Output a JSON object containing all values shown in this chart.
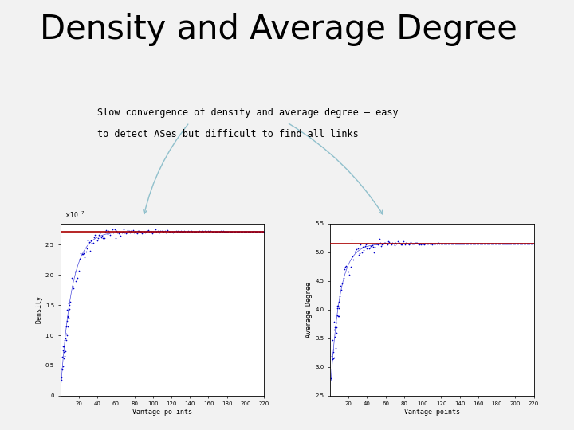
{
  "title": "Density and Average Degree",
  "subtitle_line1": "Slow convergence of density and average degree – easy",
  "subtitle_line2": "to detect ASes but difficult to find all links",
  "plot1": {
    "xlabel": "Vantage po ints",
    "ylabel": "Density",
    "xmax": 220,
    "ymin": 0,
    "ymax": 2.85e-07,
    "red_line_y": 2.72e-07,
    "curve_color": "#0000cc",
    "red_color": "#aa0000",
    "xticks": [
      20,
      40,
      60,
      80,
      100,
      120,
      140,
      160,
      180,
      200,
      220
    ]
  },
  "plot2": {
    "xlabel": "Vantage points",
    "ylabel": "Average Degree",
    "xmax": 220,
    "ymin": 2.5,
    "ymax": 5.5,
    "red_line_y": 5.15,
    "curve_color": "#0000cc",
    "red_color": "#aa0000",
    "xticks": [
      20,
      40,
      60,
      80,
      100,
      120,
      140,
      160,
      180,
      200,
      220
    ]
  },
  "arrow_color": "#90c0cc",
  "bg_color": "#f2f2f2",
  "white": "#ffffff"
}
